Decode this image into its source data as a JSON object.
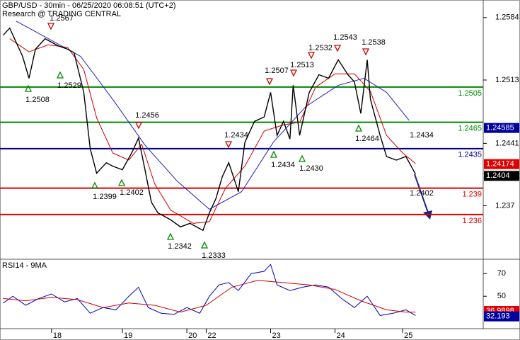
{
  "header": {
    "title": "GBP/USD - 30min - 06/25/2020 06:08:51 (UTC+2)",
    "source": "Research @ TRADING CENTRAL"
  },
  "chart_data": [
    {
      "type": "line",
      "name": "price",
      "x": [
        1,
        3,
        7,
        9,
        11,
        14,
        18,
        21,
        23,
        26,
        28,
        30,
        33,
        35,
        38,
        41,
        43,
        45,
        47,
        49,
        53,
        56,
        59,
        63,
        65,
        67,
        69,
        71,
        74,
        76,
        79,
        82,
        84,
        86,
        88,
        90,
        91,
        93,
        96,
        99,
        102,
        105,
        108,
        110,
        112,
        114,
        115,
        118,
        120,
        123,
        126,
        129
      ],
      "values": [
        1.2564,
        1.2572,
        1.254,
        1.2515,
        1.2548,
        1.256,
        1.2552,
        1.2548,
        1.2544,
        1.2499,
        1.2435,
        1.2407,
        1.2419,
        1.2415,
        1.2411,
        1.2431,
        1.2447,
        1.2411,
        1.2374,
        1.2362,
        1.2354,
        1.2346,
        1.235,
        1.2342,
        1.2362,
        1.2378,
        1.2403,
        1.2419,
        1.2386,
        1.2442,
        1.2466,
        1.2471,
        1.2499,
        1.245,
        1.2466,
        1.2446,
        1.2507,
        1.245,
        1.2499,
        1.2519,
        1.2515,
        1.2536,
        1.2519,
        1.2511,
        1.2475,
        1.2536,
        1.2491,
        1.245,
        1.2426,
        1.2422,
        1.2426,
        1.2406
      ],
      "color": "#000000",
      "ma_fast": {
        "color": "#d00000",
        "x": [
          3,
          9,
          15,
          21,
          26,
          30,
          35,
          40,
          44,
          48,
          53,
          60,
          65,
          70,
          76,
          82,
          88,
          93,
          98,
          104,
          110,
          115,
          120,
          125,
          129
        ],
        "values": [
          1.256,
          1.2545,
          1.2553,
          1.255,
          1.2525,
          1.247,
          1.243,
          1.2422,
          1.244,
          1.2395,
          1.2365,
          1.235,
          1.2352,
          1.239,
          1.2415,
          1.2455,
          1.2462,
          1.2465,
          1.2505,
          1.252,
          1.252,
          1.25,
          1.245,
          1.243,
          1.2418
        ]
      },
      "ma_slow": {
        "color": "#2020c0",
        "x": [
          5,
          15,
          25,
          35,
          45,
          55,
          65,
          75,
          85,
          95,
          105,
          113,
          120,
          127
        ],
        "values": [
          1.258,
          1.256,
          1.254,
          1.2491,
          1.2439,
          1.2398,
          1.2366,
          1.2386,
          1.2443,
          1.2483,
          1.2507,
          1.2515,
          1.2499,
          1.2467
        ]
      },
      "xlim": [
        0,
        150
      ],
      "ylim": [
        1.231,
        1.2604
      ],
      "yticks": [
        1.2584,
        1.2513,
        1.2441,
        1.237
      ],
      "xticks": [
        {
          "value": 16,
          "label": "18"
        },
        {
          "value": 38,
          "label": "19"
        },
        {
          "value": 58,
          "label": "20"
        },
        {
          "value": 64,
          "label": "22"
        },
        {
          "value": 84,
          "label": "23"
        },
        {
          "value": 104,
          "label": "24"
        },
        {
          "value": 125,
          "label": "25"
        }
      ],
      "levels": [
        {
          "value": 1.2505,
          "label": "1.2505",
          "color": "#008800"
        },
        {
          "value": 1.2465,
          "label": "1.2465",
          "color": "#008800"
        },
        {
          "value": 1.2435,
          "label": "1.2435",
          "color": "#000080"
        },
        {
          "value": 1.239,
          "label": "1.239",
          "color": "#e00000"
        },
        {
          "value": 1.236,
          "label": "1.236",
          "color": "#e00000"
        }
      ],
      "price_tags": [
        {
          "value": 1.24585,
          "label": "1.24585",
          "color": "#0000a0"
        },
        {
          "value": 1.24174,
          "label": "1.24174",
          "color": "#e00000"
        },
        {
          "value": 1.2404,
          "label": "1.2404",
          "color": "#000000"
        }
      ],
      "annotations": [
        {
          "label": "1.2567",
          "marker": "down"
        },
        {
          "label": "1.2508",
          "marker": "up"
        },
        {
          "label": "1.2529",
          "marker": "up"
        },
        {
          "label": "1.2399",
          "marker": "up"
        },
        {
          "label": "1.2402",
          "marker": "up"
        },
        {
          "label": "1.2456",
          "marker": "down"
        },
        {
          "label": "1.2342",
          "marker": "up"
        },
        {
          "label": "1.2333",
          "marker": "up"
        },
        {
          "label": "1.2434",
          "marker": "down"
        },
        {
          "label": "1.2507",
          "marker": "down"
        },
        {
          "label": "1.2434",
          "marker": "up"
        },
        {
          "label": "1.2513",
          "marker": "down"
        },
        {
          "label": "1.2430",
          "marker": "up"
        },
        {
          "label": "1.2532",
          "marker": "down"
        },
        {
          "label": "1.2543",
          "marker": "down"
        },
        {
          "label": "1.2538",
          "marker": "down"
        },
        {
          "label": "1.2464",
          "marker": "up"
        },
        {
          "label": "1.2434",
          "marker": "none"
        },
        {
          "label": "1.2402",
          "marker": "none"
        }
      ]
    },
    {
      "type": "line",
      "name": "RSI14 - 9MA",
      "series": [
        {
          "color": "#0000c0",
          "x": [
            1,
            4,
            8,
            12,
            16,
            20,
            24,
            28,
            32,
            36,
            40,
            43,
            46,
            50,
            54,
            58,
            62,
            65,
            68,
            71,
            74,
            78,
            82,
            84,
            86,
            90,
            94,
            98,
            102,
            106,
            110,
            114,
            118,
            122,
            126,
            129
          ],
          "values": [
            44,
            50,
            42,
            48,
            52,
            45,
            48,
            35,
            40,
            38,
            50,
            58,
            40,
            35,
            34,
            40,
            35,
            50,
            60,
            62,
            55,
            70,
            72,
            78,
            60,
            55,
            58,
            60,
            58,
            48,
            40,
            50,
            33,
            35,
            38,
            33
          ]
        },
        {
          "color": "#d00000",
          "x": [
            1,
            8,
            16,
            24,
            32,
            40,
            48,
            56,
            64,
            72,
            80,
            88,
            96,
            104,
            112,
            120,
            126,
            129
          ],
          "values": [
            48,
            46,
            49,
            47,
            40,
            44,
            42,
            36,
            42,
            58,
            64,
            62,
            60,
            56,
            46,
            38,
            36,
            36
          ]
        }
      ],
      "xlim": [
        0,
        150
      ],
      "ylim": [
        22,
        82
      ],
      "yticks": [
        70,
        50
      ],
      "price_tags": [
        {
          "value": 36.9898,
          "label": "36.9898",
          "color": "#e00000"
        },
        {
          "value": 32.193,
          "label": "32.193",
          "color": "#0000a0"
        }
      ]
    }
  ]
}
